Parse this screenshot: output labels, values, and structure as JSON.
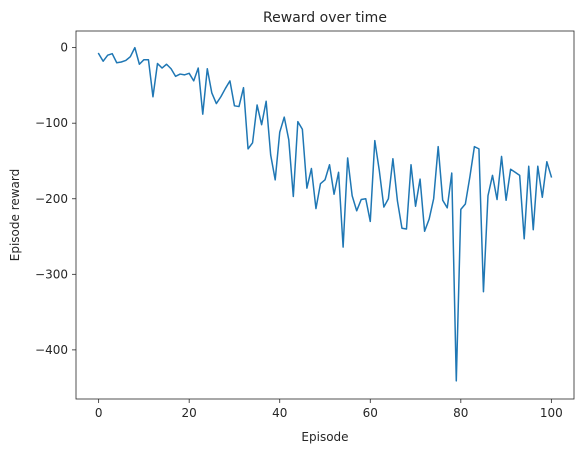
{
  "chart_data": {
    "type": "line",
    "title": "Reward over time",
    "xlabel": "Episode",
    "ylabel": "Episode reward",
    "xlim": [
      -5,
      105
    ],
    "ylim": [
      -465,
      22
    ],
    "xticks": [
      0,
      20,
      40,
      60,
      80,
      100
    ],
    "yticks": [
      0,
      -100,
      -200,
      -300,
      -400
    ],
    "grid": false,
    "colors": {
      "line": "#1f77b4",
      "axis": "#262626",
      "background": "#ffffff"
    },
    "series": [
      {
        "x": [
          0,
          1,
          2,
          3,
          4,
          5,
          6,
          7,
          8,
          9,
          10,
          11,
          12,
          13,
          14,
          15,
          16,
          17,
          18,
          19,
          20,
          21,
          22,
          23,
          24,
          25,
          26,
          27,
          28,
          29,
          30,
          31,
          32,
          33,
          34,
          35,
          36,
          37,
          38,
          39,
          40,
          41,
          42,
          43,
          44,
          45,
          46,
          47,
          48,
          49,
          50,
          51,
          52,
          53,
          54,
          55,
          56,
          57,
          58,
          59,
          60,
          61,
          62,
          63,
          64,
          65,
          66,
          67,
          68,
          69,
          70,
          71,
          72,
          73,
          74,
          75,
          76,
          77,
          78,
          79,
          80,
          81,
          82,
          83,
          84,
          85,
          86,
          87,
          88,
          89,
          90,
          91,
          92,
          93,
          94,
          95,
          96,
          97,
          98,
          99,
          100
        ],
        "values": [
          -8,
          -18,
          -10,
          -8,
          -20,
          -19,
          -17,
          -12,
          0,
          -22,
          -16,
          -16,
          -65,
          -21,
          -27,
          -22,
          -28,
          -38,
          -35,
          -36,
          -34,
          -44,
          -27,
          -88,
          -28,
          -60,
          -74,
          -65,
          -54,
          -44,
          -77,
          -78,
          -53,
          -134,
          -126,
          -76,
          -102,
          -71,
          -142,
          -175,
          -112,
          -92,
          -122,
          -197,
          -98,
          -108,
          -186,
          -160,
          -213,
          -180,
          -175,
          -155,
          -194,
          -165,
          -264,
          -146,
          -196,
          -216,
          -201,
          -200,
          -230,
          -123,
          -163,
          -211,
          -200,
          -147,
          -203,
          -239,
          -240,
          -155,
          -210,
          -174,
          -243,
          -227,
          -200,
          -131,
          -202,
          -212,
          -166,
          -441,
          -214,
          -207,
          -171,
          -131,
          -134,
          -323,
          -196,
          -169,
          -201,
          -144,
          -202,
          -161,
          -165,
          -169,
          -253,
          -157,
          -241,
          -157,
          -198,
          -151,
          -171
        ]
      }
    ]
  }
}
